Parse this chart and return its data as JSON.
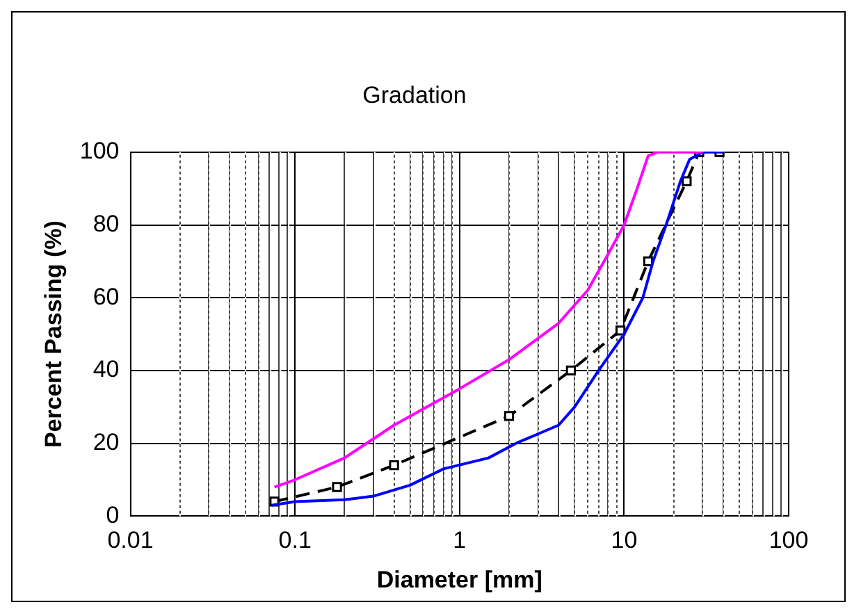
{
  "chart_data": {
    "type": "line",
    "title": "Gradation",
    "xlabel": "Diameter [mm]",
    "ylabel": "Percent Passing (%)",
    "log": "x",
    "grid": true,
    "xlim": [
      0.01,
      100
    ],
    "xticks": [
      0.01,
      {
        "value": 0.02,
        "label": null
      },
      {
        "value": 0.03,
        "label": null
      },
      {
        "value": 0.04,
        "label": null
      },
      {
        "value": 0.05,
        "label": null
      },
      {
        "value": 0.06,
        "label": null
      },
      {
        "value": 0.07,
        "label": null
      },
      {
        "value": 0.08,
        "label": null
      },
      {
        "value": 0.09,
        "label": null
      },
      0.1,
      {
        "value": 0.2,
        "label": null
      },
      {
        "value": 0.3,
        "label": null
      },
      {
        "value": 0.4,
        "label": null
      },
      {
        "value": 0.5,
        "label": null
      },
      {
        "value": 0.6,
        "label": null
      },
      {
        "value": 0.7,
        "label": null
      },
      {
        "value": 0.8,
        "label": null
      },
      {
        "value": 0.9,
        "label": null
      },
      1,
      {
        "value": 2,
        "label": null
      },
      {
        "value": 3,
        "label": null
      },
      {
        "value": 4,
        "label": null
      },
      {
        "value": 5,
        "label": null
      },
      {
        "value": 6,
        "label": null
      },
      {
        "value": 7,
        "label": null
      },
      {
        "value": 8,
        "label": null
      },
      {
        "value": 9,
        "label": null
      },
      10,
      {
        "value": 20,
        "label": null
      },
      {
        "value": 30,
        "label": null
      },
      {
        "value": 40,
        "label": null
      },
      {
        "value": 50,
        "label": null
      },
      {
        "value": 60,
        "label": null
      },
      {
        "value": 70,
        "label": null
      },
      {
        "value": 80,
        "label": null
      },
      {
        "value": 90,
        "label": null
      },
      100
    ],
    "ylim": [
      0,
      100
    ],
    "yticks": [
      0,
      20,
      40,
      60,
      80,
      100
    ],
    "series": [
      {
        "color": "#ff00ff",
        "marker": "none",
        "line_style": "solid",
        "x": [
          0.075,
          0.1,
          0.2,
          0.4,
          1,
          2,
          4,
          6,
          8,
          10,
          12,
          14,
          16,
          20,
          30
        ],
        "values": [
          8,
          10,
          16,
          25,
          35,
          43,
          53,
          62,
          72,
          80,
          90,
          99,
          100,
          100,
          100
        ]
      },
      {
        "color": "#0000ff",
        "marker": "none",
        "line_style": "solid",
        "x": [
          0.072,
          0.1,
          0.2,
          0.3,
          0.5,
          0.8,
          1.5,
          2.2,
          4,
          5,
          7,
          10,
          13,
          15,
          18,
          22,
          25,
          30,
          40
        ],
        "values": [
          3,
          4,
          4.5,
          5.5,
          8.5,
          13,
          16,
          20,
          25,
          30,
          40,
          50,
          60,
          70,
          80,
          92,
          98,
          100,
          100
        ]
      },
      {
        "color": "#000000",
        "marker": "square",
        "line_style": "dashed",
        "x": [
          0.075,
          0.18,
          0.4,
          2,
          4.75,
          9.5,
          14,
          24,
          28.6,
          38
        ],
        "values": [
          4,
          8,
          14,
          27.5,
          40,
          51,
          70,
          92,
          100,
          100
        ]
      }
    ]
  }
}
